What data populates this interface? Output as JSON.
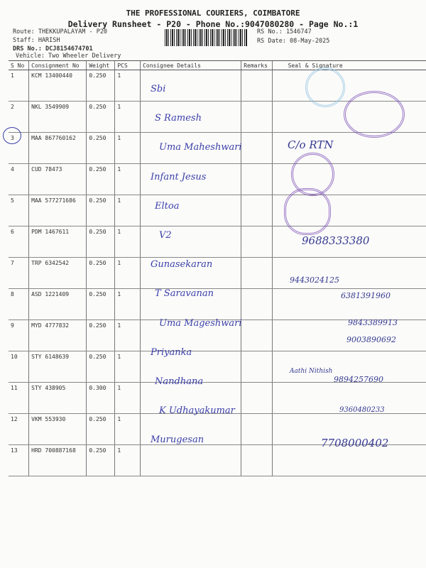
{
  "header": {
    "company": "THE PROFESSIONAL COURIERS, COIMBATORE",
    "subtitle": "Delivery Runsheet - P20 - Phone No.:9047080280 - Page No.:1",
    "route": "Route: THEKKUPALAYAM - P20",
    "staff": "Staff: HARISH",
    "drs": "DRS No.: DCJ8154674701",
    "vehicle": "Vehicle: Two Wheeler Delivery",
    "rs_no": "RS No.: 1546747",
    "rs_date": "RS Date: 08-May-2025"
  },
  "columns": [
    "S No",
    "Consignment No",
    "Weight",
    "PCS",
    "Consignee Details",
    "Remarks",
    "Seal & Signature"
  ],
  "rows": [
    {
      "sno": "1",
      "cn": "KCM 13400440",
      "weight": "0.250",
      "pcs": "1",
      "consignee": "Sbi"
    },
    {
      "sno": "2",
      "cn": "NKL 3549909",
      "weight": "0.250",
      "pcs": "1",
      "consignee": "S Ramesh"
    },
    {
      "sno": "3",
      "cn": "MAA 867760162",
      "weight": "0.250",
      "pcs": "1",
      "consignee": "Uma Maheshwari"
    },
    {
      "sno": "4",
      "cn": "CUD 78473",
      "weight": "0.250",
      "pcs": "1",
      "consignee": "Infant Jesus"
    },
    {
      "sno": "5",
      "cn": "MAA 577271686",
      "weight": "0.250",
      "pcs": "1",
      "consignee": "Eltoa"
    },
    {
      "sno": "6",
      "cn": "PDM 1467611",
      "weight": "0.250",
      "pcs": "1",
      "consignee": "V2"
    },
    {
      "sno": "7",
      "cn": "TRP 6342542",
      "weight": "0.250",
      "pcs": "1",
      "consignee": "Gunasekaran"
    },
    {
      "sno": "8",
      "cn": "ASD 1221409",
      "weight": "0.250",
      "pcs": "1",
      "consignee": "T Saravanan"
    },
    {
      "sno": "9",
      "cn": "MYD 4777832",
      "weight": "0.250",
      "pcs": "1",
      "consignee": "Uma Mageshwari"
    },
    {
      "sno": "10",
      "cn": "STY 6148639",
      "weight": "0.250",
      "pcs": "1",
      "consignee": "Priyanka"
    },
    {
      "sno": "11",
      "cn": "STY 438905",
      "weight": "0.300",
      "pcs": "1",
      "consignee": "Nandhana"
    },
    {
      "sno": "12",
      "cn": "VKM 553930",
      "weight": "0.250",
      "pcs": "1",
      "consignee": "K Udhayakumar"
    },
    {
      "sno": "13",
      "cn": "HRD 700887168",
      "weight": "0.250",
      "pcs": "1",
      "consignee": "Murugesan"
    }
  ],
  "signatures": [
    "C/o RTN",
    "9688333380",
    "9443024125",
    "6381391960",
    "9843389913",
    "9003890692",
    "Aathi Nithish",
    "9894257690",
    "9360480233",
    "7708000402"
  ],
  "colors": {
    "ink": "#3a3fa8",
    "stamp": "#7b4fb5"
  }
}
